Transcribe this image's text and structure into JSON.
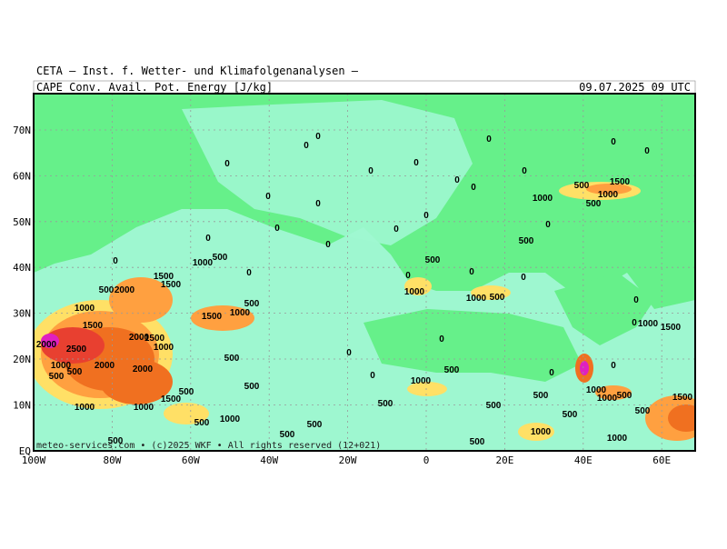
{
  "header": {
    "title": "CETA – Inst. f. Wetter- und Klimafolgenanalysen –",
    "subtitle": "CAPE Conv. Avail. Pot. Energy [J/kg]",
    "timestamp": "09.07.2025 09 UTC"
  },
  "footer": "meteo-services.com • (c)2025 WKF • All rights reserved (12+021)",
  "lat_labels": [
    "70N",
    "60N",
    "50N",
    "40N",
    "30N",
    "20N",
    "10N",
    "EQ"
  ],
  "lon_labels": [
    "100W",
    "80W",
    "60W",
    "40W",
    "20W",
    "0",
    "20E",
    "40E",
    "60E"
  ],
  "contour_labels": [
    "0",
    "0",
    "0",
    "0",
    "0",
    "0",
    "0",
    "0",
    "0",
    "0",
    "0",
    "0",
    "0",
    "0",
    "0",
    "0",
    "0",
    "0",
    "1500",
    "500",
    "1000",
    "1000",
    "500",
    "0",
    "500",
    "0",
    "1000",
    "500",
    "500",
    "0",
    "0",
    "0",
    "0",
    "1000",
    "1500",
    "1500",
    "2000",
    "500",
    "1000",
    "500",
    "1000",
    "1500",
    "1000",
    "500",
    "0",
    "1500",
    "0",
    "1000",
    "1500",
    "2000",
    "2500",
    "2000",
    "1500",
    "1000",
    "0",
    "0",
    "500",
    "1000",
    "500",
    "2000",
    "2000",
    "500",
    "0",
    "500",
    "0",
    "0",
    "1000",
    "500",
    "500",
    "1500",
    "1000",
    "1000",
    "500",
    "500",
    "1500",
    "1000",
    "1000",
    "500",
    "500",
    "500",
    "500",
    "500",
    "1000",
    "500",
    "1000",
    "500",
    "1000",
    "500",
    "500"
  ]
}
